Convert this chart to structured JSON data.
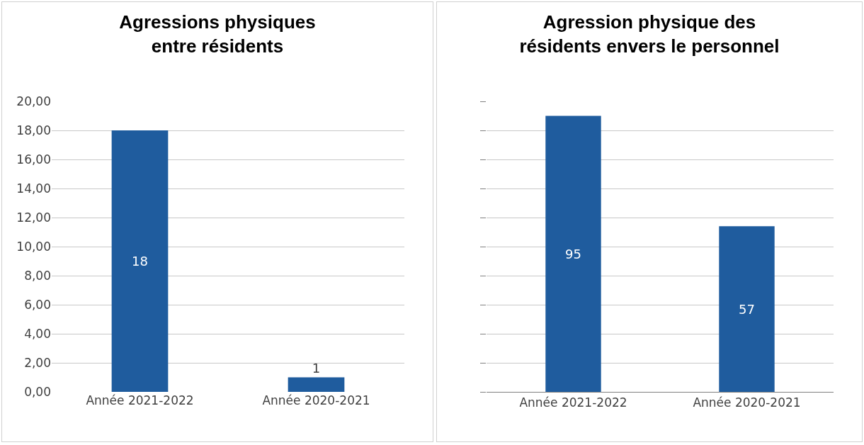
{
  "chart_data": [
    {
      "type": "bar",
      "title": "Agressions physiques\nentre résidents",
      "categories": [
        "Année 2021-2022",
        "Année 2020-2021"
      ],
      "values": [
        18,
        1
      ],
      "color": "#1f5c9e",
      "data_labels": true,
      "ylim": [
        0,
        20
      ],
      "yticks": [
        {
          "value": 0,
          "label": "0,00"
        },
        {
          "value": 2,
          "label": "2,00"
        },
        {
          "value": 4,
          "label": "4,00"
        },
        {
          "value": 6,
          "label": "6,00"
        },
        {
          "value": 8,
          "label": "8,00"
        },
        {
          "value": 10,
          "label": "10,00"
        },
        {
          "value": 12,
          "label": "12,00"
        },
        {
          "value": 14,
          "label": "14,00"
        },
        {
          "value": 16,
          "label": "16,00"
        },
        {
          "value": 18,
          "label": "18,00"
        },
        {
          "value": 20,
          "label": "20,00"
        }
      ],
      "grid": "y",
      "legend": false
    },
    {
      "type": "bar",
      "title": "Agression physique des\nrésidents envers le personnel",
      "categories": [
        "Année 2021-2022",
        "Année 2020-2021"
      ],
      "values": [
        95,
        57
      ],
      "color": "#1f5c9e",
      "data_labels": true,
      "yticks": [
        {
          "value": 0,
          "label": null
        },
        {
          "value": 10,
          "label": null
        },
        {
          "value": 20,
          "label": null
        },
        {
          "value": 30,
          "label": null
        },
        {
          "value": 40,
          "label": null
        },
        {
          "value": 50,
          "label": null
        },
        {
          "value": 60,
          "label": null
        },
        {
          "value": 70,
          "label": null
        },
        {
          "value": 80,
          "label": null
        },
        {
          "value": 90,
          "label": null
        },
        {
          "value": 100,
          "label": null
        }
      ],
      "grid": "y",
      "tick_labels": "x",
      "legend": false
    }
  ]
}
